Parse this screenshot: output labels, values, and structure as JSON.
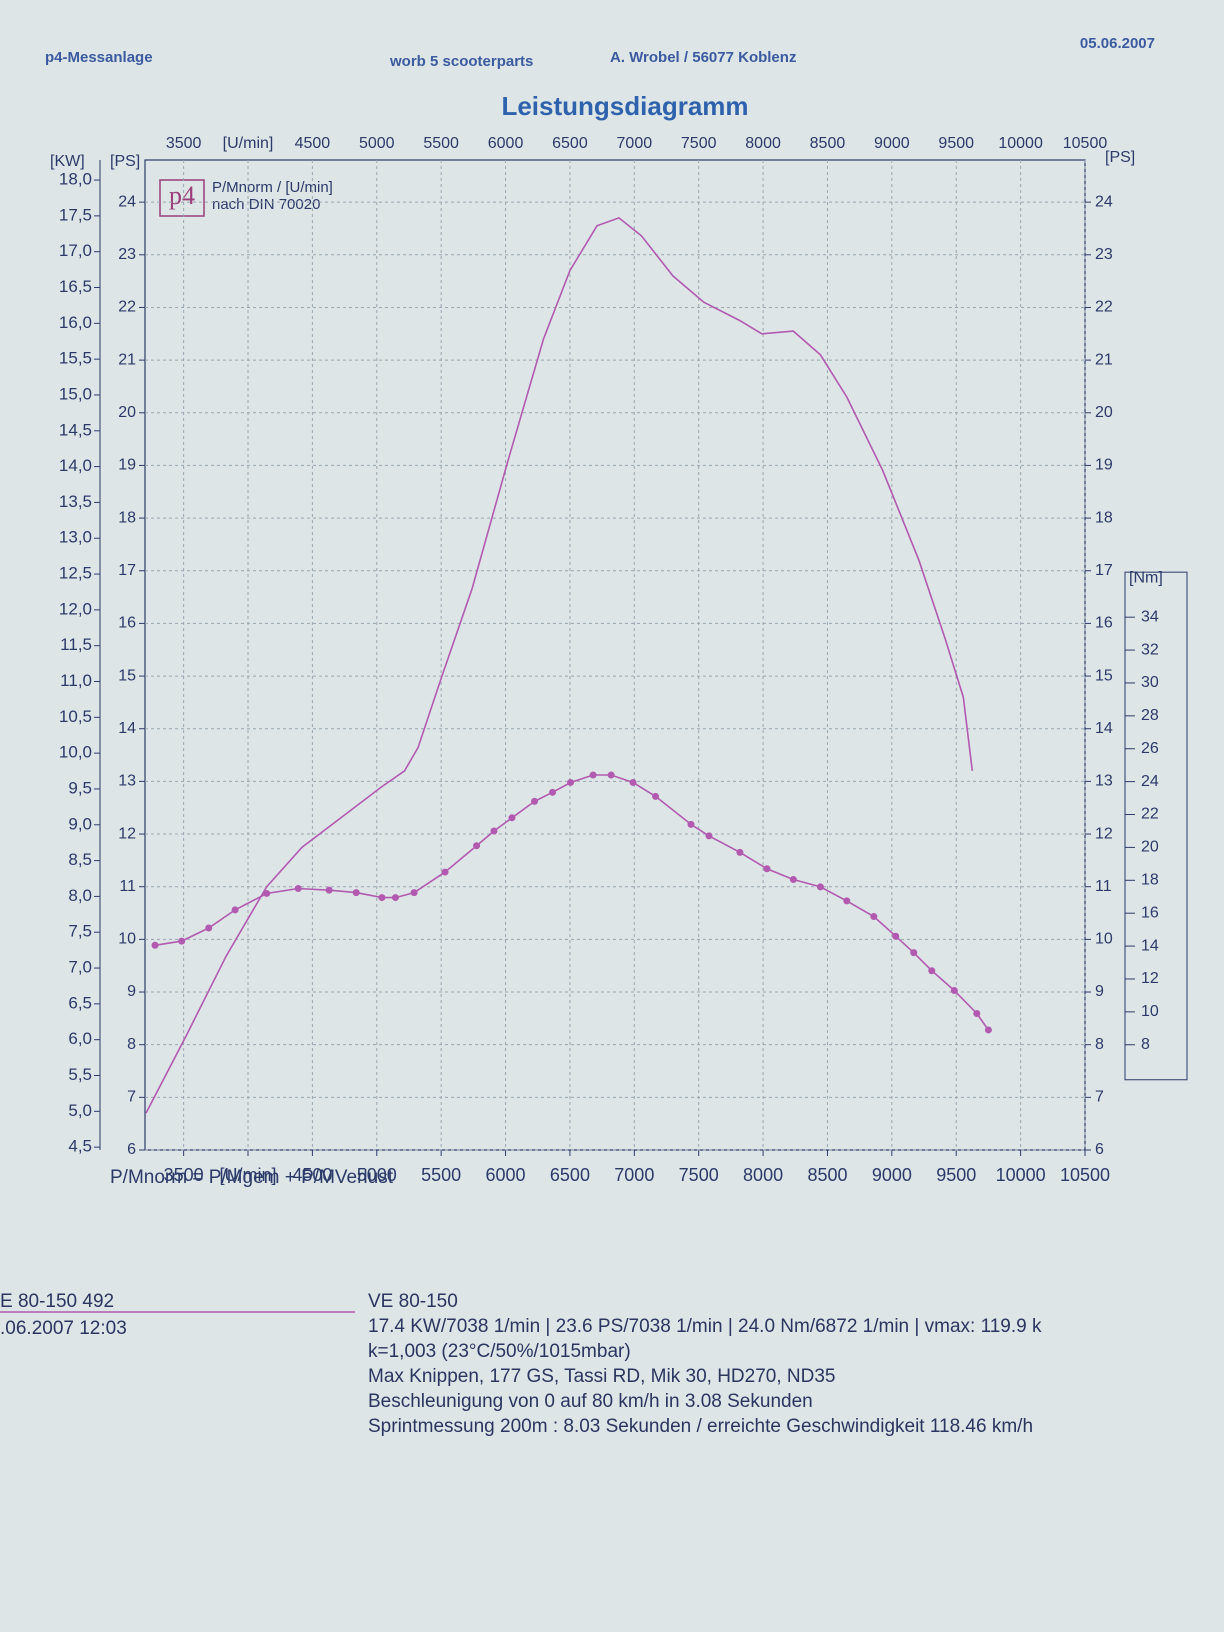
{
  "chart_data": {
    "type": "line",
    "title": "Leistungsdiagramm",
    "header": {
      "left": "p4-Messanlage",
      "center": "worb 5 scooterparts",
      "address": "A. Wrobel / 56077 Koblenz",
      "date": "05.06.2007"
    },
    "logo": "p4",
    "legend_lines": [
      "P/Mnorm / [U/min]",
      "nach DIN 70020"
    ],
    "formula": "P/Mnorm = P/Mgem + P/MVerlust",
    "axis_units": {
      "kw": "[KW]",
      "ps": "[PS]",
      "nm": "[Nm]"
    },
    "xlim": [
      3200,
      10500
    ],
    "xticks": [
      3500,
      {
        "value": 4000,
        "label": "[U/min]"
      },
      4500,
      5000,
      5500,
      6000,
      6500,
      7000,
      7500,
      8000,
      8500,
      9000,
      9500,
      10000,
      10500
    ],
    "ylim": [
      6,
      24.8
    ],
    "yticks": [
      6,
      7,
      8,
      9,
      10,
      11,
      12,
      13,
      14,
      15,
      16,
      17,
      18,
      19,
      20,
      21,
      22,
      23,
      24
    ],
    "y2lim": [
      4.46,
      18.28
    ],
    "y2ticks": [
      {
        "value": 4.5,
        "label": "4,5"
      },
      {
        "value": 5,
        "label": "5,0"
      },
      {
        "value": 5.5,
        "label": "5,5"
      },
      {
        "value": 6,
        "label": "6,0"
      },
      {
        "value": 6.5,
        "label": "6,5"
      },
      {
        "value": 7,
        "label": "7,0"
      },
      {
        "value": 7.5,
        "label": "7,5"
      },
      {
        "value": 8,
        "label": "8,0"
      },
      {
        "value": 8.5,
        "label": "8,5"
      },
      {
        "value": 9,
        "label": "9,0"
      },
      {
        "value": 9.5,
        "label": "9,5"
      },
      {
        "value": 10,
        "label": "10,0"
      },
      {
        "value": 10.5,
        "label": "10,5"
      },
      {
        "value": 11,
        "label": "11,0"
      },
      {
        "value": 11.5,
        "label": "11,5"
      },
      {
        "value": 12,
        "label": "12,0"
      },
      {
        "value": 12.5,
        "label": "12,5"
      },
      {
        "value": 13,
        "label": "13,0"
      },
      {
        "value": 13.5,
        "label": "13,5"
      },
      {
        "value": 14,
        "label": "14,0"
      },
      {
        "value": 14.5,
        "label": "14,5"
      },
      {
        "value": 15,
        "label": "15,0"
      },
      {
        "value": 15.5,
        "label": "15,5"
      },
      {
        "value": 16,
        "label": "16,0"
      },
      {
        "value": 16.5,
        "label": "16,5"
      },
      {
        "value": 17,
        "label": "17,0"
      },
      {
        "value": 17.5,
        "label": "17,5"
      },
      {
        "value": 18,
        "label": "18,0"
      }
    ],
    "y3lim": [
      1.6,
      61.8
    ],
    "y3ticks": [
      8,
      10,
      12,
      14,
      16,
      18,
      20,
      22,
      24,
      26,
      28,
      30,
      32,
      34
    ],
    "grid": true,
    "series": [
      {
        "color": "#b25ab0",
        "axis": "y",
        "markers": false,
        "x": [
          3208,
          3520,
          3830,
          4145,
          4420,
          4770,
          5040,
          5215,
          5320,
          5500,
          5740,
          6020,
          6295,
          6500,
          6710,
          6880,
          7055,
          7300,
          7540,
          7820,
          7990,
          8235,
          8445,
          8650,
          8930,
          9210,
          9415,
          9555,
          9625
        ],
        "values": [
          6.7,
          8.17,
          9.68,
          11.0,
          11.75,
          12.4,
          12.9,
          13.2,
          13.64,
          14.96,
          16.66,
          19.1,
          21.4,
          22.7,
          23.55,
          23.7,
          23.36,
          22.6,
          22.1,
          21.75,
          21.5,
          21.55,
          21.1,
          20.3,
          18.9,
          17.2,
          15.7,
          14.6,
          13.2
        ]
      },
      {
        "color": "#b25ab0",
        "axis": "y3",
        "markers": true,
        "x": [
          3278,
          3485,
          3695,
          3900,
          4145,
          4390,
          4630,
          4840,
          5040,
          5145,
          5290,
          5530,
          5775,
          5910,
          6050,
          6225,
          6365,
          6505,
          6680,
          6820,
          6990,
          7165,
          7440,
          7580,
          7820,
          8030,
          8235,
          8445,
          8650,
          8860,
          9030,
          9170,
          9310,
          9485,
          9660,
          9750
        ],
        "values": [
          14.05,
          14.3,
          15.1,
          16.2,
          17.2,
          17.5,
          17.4,
          17.25,
          16.95,
          16.95,
          17.25,
          18.5,
          20.1,
          21.0,
          21.8,
          22.8,
          23.35,
          23.95,
          24.4,
          24.4,
          23.95,
          23.1,
          21.4,
          20.7,
          19.7,
          18.7,
          18.05,
          17.6,
          16.75,
          15.8,
          14.6,
          13.6,
          12.5,
          11.3,
          9.9,
          8.9
        ]
      }
    ],
    "footer": {
      "left": [
        "E 80-150 492",
        ".06.2007  12:03"
      ],
      "right": [
        "VE 80-150",
        "17.4 KW/7038 1/min  |  23.6 PS/7038 1/min  |  24.0 Nm/6872 1/min | vmax: 119.9 k",
        "k=1,003 (23°C/50%/1015mbar)",
        "Max Knippen, 177 GS, Tassi RD, Mik 30, HD270, ND35",
        "Beschleunigung von 0 auf 80 km/h in 3.08 Sekunden",
        "Sprintmessung 200m : 8.03 Sekunden / erreichte Geschwindigkeit 118.46 km/h"
      ]
    }
  }
}
